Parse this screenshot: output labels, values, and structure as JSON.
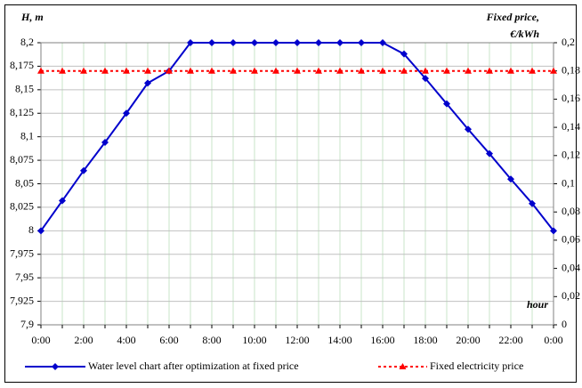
{
  "chart_data": {
    "type": "line",
    "y_label": "H, m",
    "y2_label": [
      "Fixed price,",
      "€/kWh"
    ],
    "x_label": "hour",
    "categories": [
      "0:00",
      null,
      "2:00",
      null,
      "4:00",
      null,
      "6:00",
      null,
      "8:00",
      null,
      "10:00",
      null,
      "12:00",
      null,
      "14:00",
      null,
      "16:00",
      null,
      "18:00",
      null,
      "20:00",
      null,
      "22:00",
      null,
      "0:00"
    ],
    "series": [
      {
        "name": "Water level chart after optimization at fixed price",
        "color": "#0000cc",
        "marker": "diamond",
        "axis": "y",
        "values": [
          8.0,
          8.032,
          8.064,
          8.094,
          8.125,
          8.157,
          8.17,
          8.2,
          8.2,
          8.2,
          8.2,
          8.2,
          8.2,
          8.2,
          8.2,
          8.2,
          8.2,
          8.188,
          8.162,
          8.135,
          8.108,
          8.082,
          8.055,
          8.029,
          8.0
        ]
      },
      {
        "name": "Fixed electricity price",
        "color": "#ff0000",
        "marker": "triangle",
        "dashed": true,
        "axis": "y2",
        "values": [
          0.18,
          0.18,
          0.18,
          0.18,
          0.18,
          0.18,
          0.18,
          0.18,
          0.18,
          0.18,
          0.18,
          0.18,
          0.18,
          0.18,
          0.18,
          0.18,
          0.18,
          0.18,
          0.18,
          0.18,
          0.18,
          0.18,
          0.18,
          0.18,
          0.18
        ]
      }
    ],
    "ylim": [
      7.9,
      8.2
    ],
    "yticks": [
      {
        "value": 7.9,
        "label": "7,9"
      },
      {
        "value": 7.925,
        "label": "7,925"
      },
      {
        "value": 7.95,
        "label": "7,95"
      },
      {
        "value": 7.975,
        "label": "7,975"
      },
      8,
      {
        "value": 8.025,
        "label": "8,025"
      },
      {
        "value": 8.05,
        "label": "8,05"
      },
      {
        "value": 8.075,
        "label": "8,075"
      },
      {
        "value": 8.1,
        "label": "8,1"
      },
      {
        "value": 8.125,
        "label": "8,125"
      },
      {
        "value": 8.15,
        "label": "8,15"
      },
      {
        "value": 8.175,
        "label": "8,175"
      },
      {
        "value": 8.2,
        "label": "8,2"
      }
    ],
    "y2lim": [
      0,
      0.2
    ],
    "y2ticks": [
      0,
      {
        "value": 0.02,
        "label": "0,02"
      },
      {
        "value": 0.04,
        "label": "0,04"
      },
      {
        "value": 0.06,
        "label": "0,06"
      },
      {
        "value": 0.08,
        "label": "0,08"
      },
      {
        "value": 0.1,
        "label": "0,1"
      },
      {
        "value": 0.12,
        "label": "0,12"
      },
      {
        "value": 0.14,
        "label": "0,14"
      },
      {
        "value": 0.16,
        "label": "0,16"
      },
      {
        "value": 0.18,
        "label": "0,18"
      },
      {
        "value": 0.2,
        "label": "0,2"
      }
    ],
    "grid": true,
    "legend": "bottom"
  }
}
